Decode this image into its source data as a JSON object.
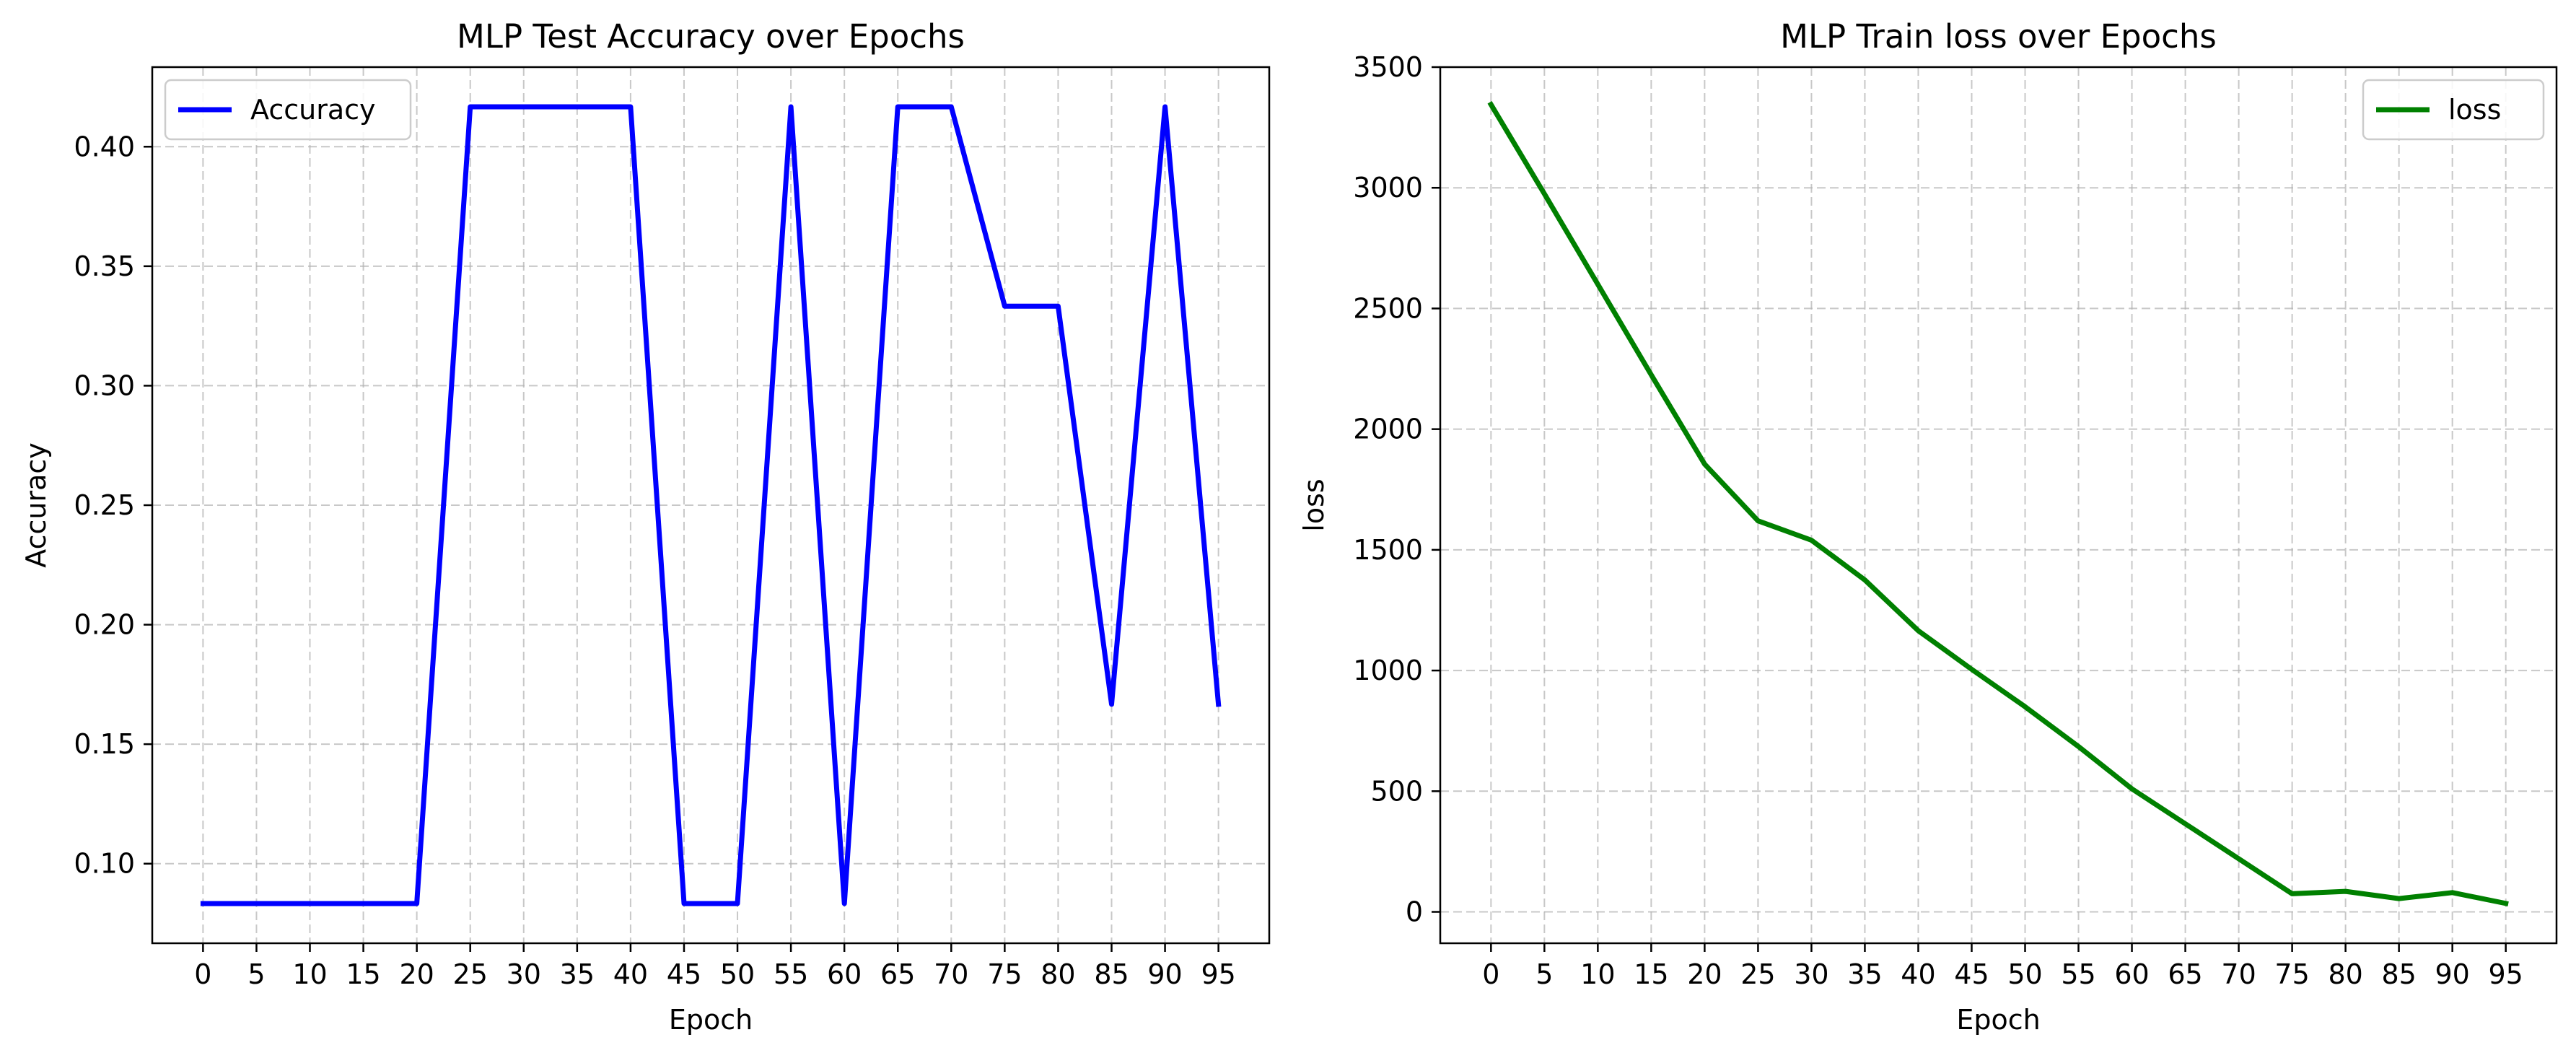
{
  "chart_data": [
    {
      "type": "line",
      "title": "MLP Test Accuracy over Epochs",
      "xlabel": "Epoch",
      "ylabel": "Accuracy",
      "xlim": [
        -4.75,
        99.75
      ],
      "ylim": [
        0.0667,
        0.4333
      ],
      "xticks": [
        0,
        5,
        10,
        15,
        20,
        25,
        30,
        35,
        40,
        45,
        50,
        55,
        60,
        65,
        70,
        75,
        80,
        85,
        90,
        95
      ],
      "yticks": [
        0.1,
        0.15,
        0.2,
        0.25,
        0.3,
        0.35,
        0.4
      ],
      "ytick_labels": [
        "0.10",
        "0.15",
        "0.20",
        "0.25",
        "0.30",
        "0.35",
        "0.40"
      ],
      "grid": true,
      "legend_position": "upper-left",
      "series": [
        {
          "name": "Accuracy",
          "color": "#0000ff",
          "x": [
            0,
            5,
            10,
            15,
            20,
            25,
            30,
            35,
            40,
            45,
            50,
            55,
            60,
            65,
            70,
            75,
            80,
            85,
            90,
            95
          ],
          "values": [
            0.0833,
            0.0833,
            0.0833,
            0.0833,
            0.0833,
            0.4167,
            0.4167,
            0.4167,
            0.4167,
            0.0833,
            0.0833,
            0.4167,
            0.0833,
            0.4167,
            0.4167,
            0.3333,
            0.3333,
            0.1667,
            0.4167,
            0.1667
          ]
        }
      ]
    },
    {
      "type": "line",
      "title": "MLP  Train loss over Epochs",
      "xlabel": "Epoch",
      "ylabel": "loss",
      "xlim": [
        -4.75,
        99.75
      ],
      "ylim": [
        -130,
        3500
      ],
      "xticks": [
        0,
        5,
        10,
        15,
        20,
        25,
        30,
        35,
        40,
        45,
        50,
        55,
        60,
        65,
        70,
        75,
        80,
        85,
        90,
        95
      ],
      "yticks": [
        0,
        500,
        1000,
        1500,
        2000,
        2500,
        3000,
        3500
      ],
      "ytick_labels": [
        "0",
        "500",
        "1000",
        "1500",
        "2000",
        "2500",
        "3000",
        "3500"
      ],
      "grid": true,
      "legend_position": "upper-right",
      "series": [
        {
          "name": "loss",
          "color": "#008000",
          "x": [
            0,
            5,
            10,
            15,
            20,
            25,
            30,
            35,
            40,
            45,
            50,
            55,
            60,
            65,
            70,
            75,
            80,
            85,
            90,
            95
          ],
          "values": [
            3345,
            2975,
            2600,
            2225,
            1855,
            1620,
            1540,
            1375,
            1165,
            1005,
            850,
            685,
            510,
            365,
            220,
            75,
            85,
            55,
            80,
            35
          ]
        }
      ]
    }
  ]
}
